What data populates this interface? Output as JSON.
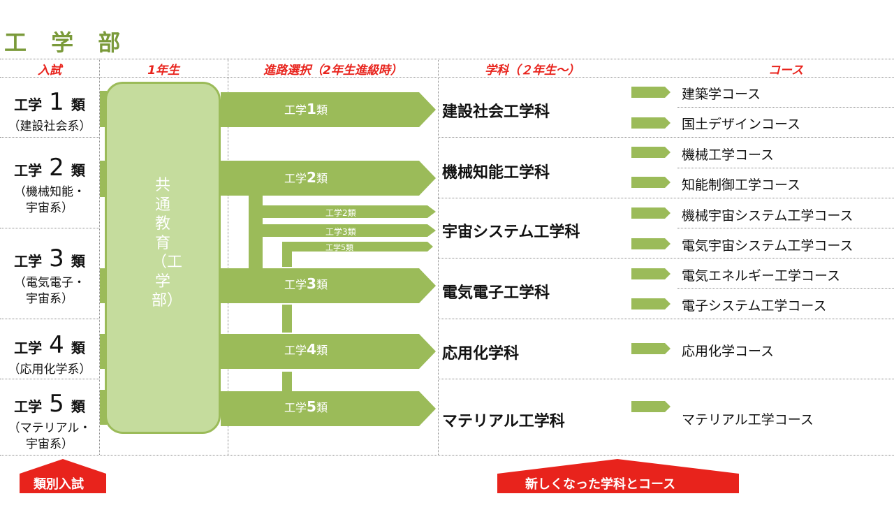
{
  "title": "工 学 部",
  "headers": {
    "entrance": "入試",
    "year1": "1年生",
    "path": "進路選択（2年生進級時）",
    "dept": "学科（２年生～）",
    "course": "コース"
  },
  "categories": [
    {
      "prefix": "工学",
      "num": "1",
      "suffix": "類",
      "sub": "（建設社会系）"
    },
    {
      "prefix": "工学",
      "num": "2",
      "suffix": "類",
      "sub": "（機械知能・宇宙系）"
    },
    {
      "prefix": "工学",
      "num": "3",
      "suffix": "類",
      "sub": "（電気電子・宇宙系）"
    },
    {
      "prefix": "工学",
      "num": "4",
      "suffix": "類",
      "sub": "（応用化学系）"
    },
    {
      "prefix": "工学",
      "num": "5",
      "suffix": "類",
      "sub": "（マテリアル・宇宙系）"
    }
  ],
  "common_education": "共通教育（工学部）",
  "arrows": [
    {
      "prefix": "工学",
      "num": "1",
      "suffix": "類"
    },
    {
      "prefix": "工学",
      "num": "2",
      "suffix": "類"
    },
    {
      "prefix": "工学",
      "num": "3",
      "suffix": "類"
    },
    {
      "prefix": "工学",
      "num": "4",
      "suffix": "類"
    },
    {
      "prefix": "工学",
      "num": "5",
      "suffix": "類"
    }
  ],
  "small_arrows": [
    "工学2類",
    "工学3類",
    "工学5類"
  ],
  "departments": [
    "建設社会工学科",
    "機械知能工学科",
    "宇宙システム工学科",
    "電気電子工学科",
    "応用化学科",
    "マテリアル工学科"
  ],
  "courses": [
    "建築学コース",
    "国土デザインコース",
    "機械工学コース",
    "知能制御工学コース",
    "機械宇宙システム工学コース",
    "電気宇宙システム工学コース",
    "電気エネルギー工学コース",
    "電子システム工学コース",
    "応用化学コース",
    "マテリアル工学コース"
  ],
  "banners": {
    "left": "類別入試",
    "right": "新しくなった学科とコース"
  },
  "colors": {
    "green": "#9bbb59",
    "light_green": "#c5dc9d",
    "red": "#e8231c",
    "title_green": "#7a9a3a"
  }
}
